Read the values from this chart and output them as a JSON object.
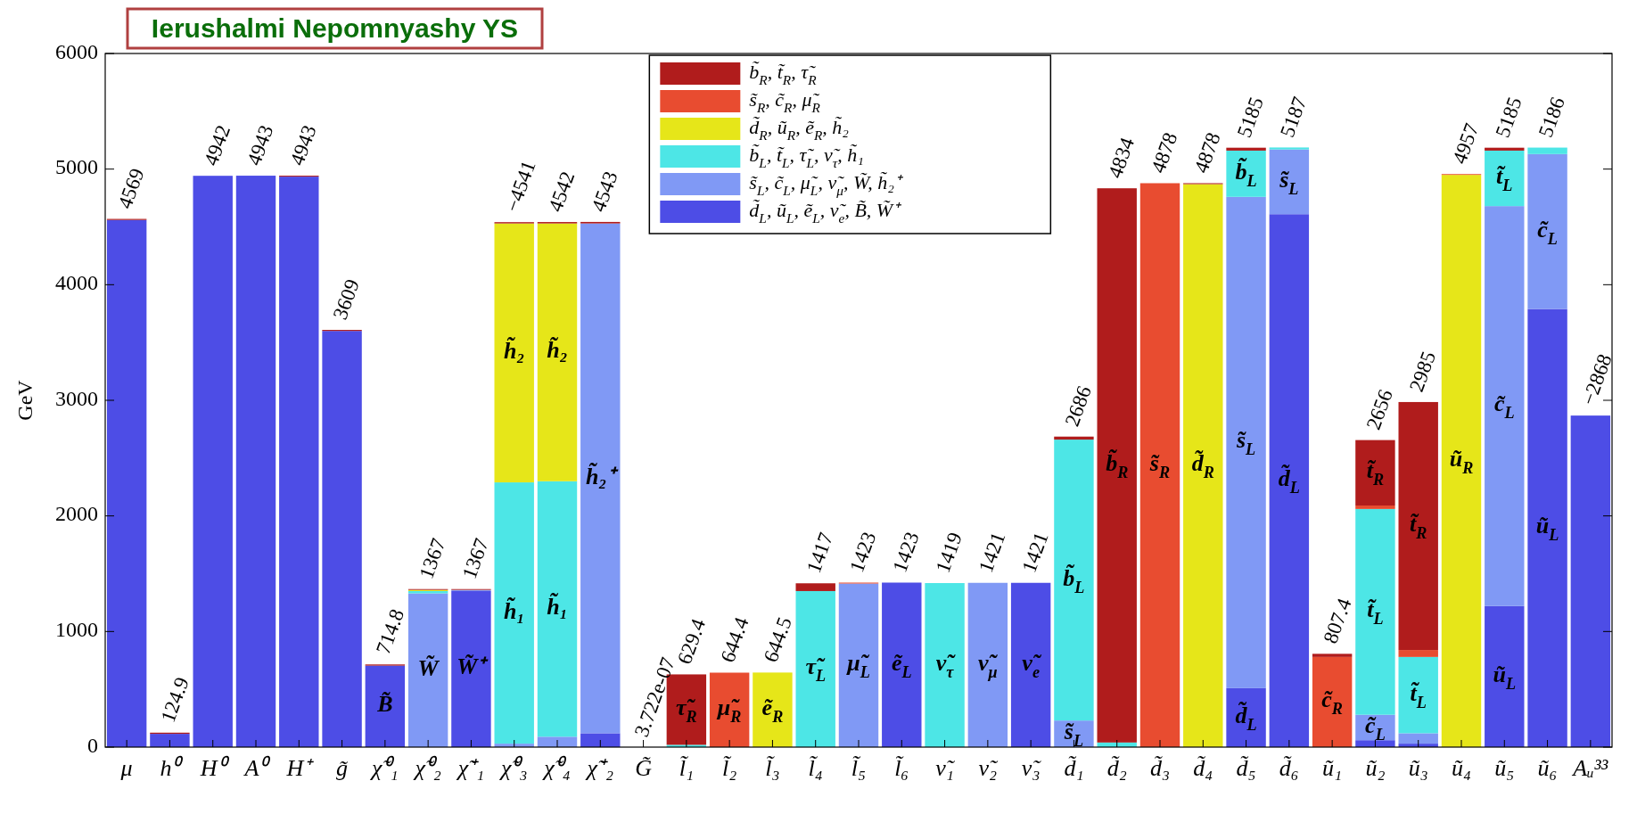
{
  "chart_data": {
    "type": "bar",
    "stacked": true,
    "ylabel": "GeV",
    "ylim": [
      0,
      6000
    ],
    "yticks": [
      0,
      1000,
      2000,
      3000,
      4000,
      5000,
      6000
    ],
    "legend": "top",
    "grid": false,
    "categories": [
      "μ",
      "h⁰",
      "H⁰",
      "A⁰",
      "H⁺",
      "g̃",
      "χ̃⁰₁",
      "χ̃⁰₂",
      "χ̃⁺₁",
      "χ̃⁰₃",
      "χ̃⁰₄",
      "χ̃⁺₂",
      "G̃",
      "l̃₁",
      "l̃₂",
      "l̃₃",
      "l̃₄",
      "l̃₅",
      "l̃₆",
      "ν̃₁",
      "ν̃₂",
      "ν̃₃",
      "d̃₁",
      "d̃₂",
      "d̃₃",
      "d̃₄",
      "d̃₅",
      "d̃₆",
      "ũ₁",
      "ũ₂",
      "ũ₃",
      "ũ₄",
      "ũ₅",
      "ũ₆",
      "Aᵤ³³"
    ],
    "series": [
      {
        "name": "d̃$_{L}$, ũ$_{L}$, ẽ$_{L}$, ν̃$_{e}$, B̃, W̃⁺",
        "color": "#4d4de6",
        "values": [
          4560,
          115,
          4942,
          4943,
          4935,
          3600,
          705,
          0,
          1350,
          0,
          0,
          120,
          0,
          0,
          0,
          0,
          0,
          0,
          1423,
          0,
          0,
          1421,
          0,
          0,
          0,
          0,
          510,
          4610,
          0,
          60,
          30,
          0,
          1220,
          3790,
          2868
        ],
        "value_labels": [
          null,
          null,
          null,
          null,
          null,
          null,
          "B̃",
          null,
          "W̃⁺",
          null,
          null,
          null,
          null,
          null,
          null,
          null,
          null,
          null,
          "ẽ$_{L}$",
          null,
          null,
          "ν̃$_{e}$",
          null,
          null,
          null,
          null,
          "d̃$_{L}$",
          "d̃$_{L}$",
          null,
          null,
          null,
          null,
          "ũ$_{L}$",
          "ũ$_{L}$",
          null
        ]
      },
      {
        "name": "s̃$_{L}$, c̃$_{L}$, μ̃$_{L}$, ν̃$_{μ}$, W̃, h̃₂⁺",
        "color": "#8099f5",
        "values": [
          0,
          0,
          0,
          0,
          0,
          0,
          0,
          1330,
          10,
          30,
          90,
          4410,
          0,
          0,
          0,
          0,
          0,
          1415,
          0,
          0,
          1421,
          0,
          230,
          0,
          0,
          0,
          4250,
          560,
          0,
          220,
          90,
          0,
          3460,
          1340,
          0
        ],
        "value_labels": [
          null,
          null,
          null,
          null,
          null,
          null,
          null,
          "W̃",
          null,
          null,
          null,
          "h̃₂⁺",
          null,
          null,
          null,
          null,
          null,
          "μ̃$_{L}$",
          null,
          null,
          "ν̃$_{μ}$",
          null,
          "s̃$_{L}$",
          null,
          null,
          null,
          "s̃$_{L}$",
          "s̃$_{L}$",
          null,
          "c̃$_{L}$",
          null,
          null,
          "c̃$_{L}$",
          "c̃$_{L}$",
          null
        ]
      },
      {
        "name": "b̃$_{L}$, t̃$_{L}$, τ̃$_{L}$, ν̃$_{τ}$, h̃₁",
        "color": "#4de6e6",
        "values": [
          0,
          0,
          0,
          0,
          0,
          0,
          0,
          20,
          0,
          2260,
          2210,
          0,
          0,
          20,
          0,
          0,
          1350,
          0,
          0,
          1419,
          0,
          0,
          2430,
          40,
          0,
          0,
          400,
          17,
          0,
          1780,
          660,
          0,
          480,
          56,
          0
        ],
        "value_labels": [
          null,
          null,
          null,
          null,
          null,
          null,
          null,
          null,
          null,
          "h̃₁",
          "h̃₁",
          null,
          null,
          null,
          null,
          null,
          "τ̃$_{L}$",
          null,
          null,
          "ν̃$_{τ}$",
          null,
          null,
          "b̃$_{L}$",
          null,
          null,
          null,
          "b̃$_{L}$",
          null,
          null,
          "t̃$_{L}$",
          "t̃$_{L}$",
          null,
          "t̃$_{L}$",
          null,
          null
        ]
      },
      {
        "name": "d̃$_{R}$, ũ$_{R}$, ẽ$_{R}$, h̃₂",
        "color": "#e6e619",
        "values": [
          0,
          0,
          0,
          0,
          0,
          0,
          0,
          10,
          0,
          2240,
          2230,
          0,
          0,
          0,
          0,
          645,
          0,
          0,
          0,
          0,
          0,
          0,
          0,
          0,
          0,
          4870,
          0,
          0,
          0,
          0,
          0,
          4950,
          0,
          0,
          0
        ],
        "value_labels": [
          null,
          null,
          null,
          null,
          null,
          null,
          null,
          null,
          null,
          "h̃₂",
          "h̃₂",
          null,
          null,
          null,
          null,
          "ẽ$_{R}$",
          null,
          null,
          null,
          null,
          null,
          null,
          null,
          null,
          null,
          "d̃$_{R}$",
          null,
          null,
          null,
          null,
          null,
          "ũ$_{R}$",
          null,
          null,
          null
        ]
      },
      {
        "name": "s̃$_{R}$, c̃$_{R}$, μ̃$_{R}$",
        "color": "#e84c30",
        "values": [
          0,
          0,
          0,
          0,
          0,
          0,
          0,
          0,
          0,
          0,
          0,
          0,
          0,
          0,
          644,
          0,
          0,
          8,
          0,
          0,
          0,
          0,
          0,
          0,
          4878,
          0,
          0,
          0,
          780,
          30,
          60,
          7,
          0,
          0,
          0
        ],
        "value_labels": [
          null,
          null,
          null,
          null,
          null,
          null,
          null,
          null,
          null,
          null,
          null,
          null,
          null,
          null,
          "μ̃$_{R}$",
          null,
          null,
          null,
          null,
          null,
          null,
          null,
          null,
          null,
          "s̃$_{R}$",
          null,
          null,
          null,
          "c̃$_{R}$",
          null,
          null,
          null,
          null,
          null,
          null
        ]
      },
      {
        "name": "b̃$_{R}$, t̃$_{R}$, τ̃$_{R}$",
        "color": "#b01c1c",
        "values": [
          9,
          10,
          0,
          0,
          8,
          9,
          10,
          7,
          7,
          11,
          12,
          13,
          0,
          609,
          0,
          0,
          67,
          0,
          0,
          0,
          0,
          0,
          26,
          4794,
          0,
          8,
          25,
          0,
          27,
          566,
          2145,
          0,
          25,
          0,
          0
        ],
        "value_labels": [
          null,
          null,
          null,
          null,
          null,
          null,
          null,
          null,
          null,
          null,
          null,
          null,
          null,
          "τ̃$_{R}$",
          null,
          null,
          null,
          null,
          null,
          null,
          null,
          null,
          null,
          "b̃$_{R}$",
          null,
          null,
          null,
          null,
          null,
          "t̃$_{R}$",
          "t̃$_{R}$",
          null,
          null,
          null,
          null
        ]
      }
    ],
    "annotations": [
      "Ierushalmi Nepomnyashy YS",
      {
        "text": "4569",
        "x": "μ",
        "y": 4569
      },
      {
        "text": "124.9",
        "x": "h⁰",
        "y": 125
      },
      {
        "text": "4942",
        "x": "H⁰",
        "y": 4942
      },
      {
        "text": "4943",
        "x": "A⁰",
        "y": 4943
      },
      {
        "text": "4943",
        "x": "H⁺",
        "y": 4943
      },
      {
        "text": "3609",
        "x": "g̃",
        "y": 3609
      },
      {
        "text": "714.8",
        "x": "χ̃⁰₁",
        "y": 715
      },
      {
        "text": "1367",
        "x": "χ̃⁰₂",
        "y": 1367
      },
      {
        "text": "1367",
        "x": "χ̃⁺₁",
        "y": 1367
      },
      {
        "text": "−4541",
        "x": "χ̃⁰₃",
        "y": 4541
      },
      {
        "text": "4542",
        "x": "χ̃⁰₄",
        "y": 4542
      },
      {
        "text": "4543",
        "x": "χ̃⁺₂",
        "y": 4543
      },
      {
        "text": "3.722e-07",
        "x": "G̃",
        "y": 0
      },
      {
        "text": "629.4",
        "x": "l̃₁",
        "y": 629
      },
      {
        "text": "644.4",
        "x": "l̃₂",
        "y": 644
      },
      {
        "text": "644.5",
        "x": "l̃₃",
        "y": 645
      },
      {
        "text": "1417",
        "x": "l̃₄",
        "y": 1417
      },
      {
        "text": "1423",
        "x": "l̃₅",
        "y": 1423
      },
      {
        "text": "1423",
        "x": "l̃₆",
        "y": 1423
      },
      {
        "text": "1419",
        "x": "ν̃₁",
        "y": 1419
      },
      {
        "text": "1421",
        "x": "ν̃₂",
        "y": 1421
      },
      {
        "text": "1421",
        "x": "ν̃₃",
        "y": 1421
      },
      {
        "text": "2686",
        "x": "d̃₁",
        "y": 2686
      },
      {
        "text": "4834",
        "x": "d̃₂",
        "y": 4834
      },
      {
        "text": "4878",
        "x": "d̃₃",
        "y": 4878
      },
      {
        "text": "4878",
        "x": "d̃₄",
        "y": 4878
      },
      {
        "text": "5185",
        "x": "d̃₅",
        "y": 5185
      },
      {
        "text": "5187",
        "x": "d̃₆",
        "y": 5187
      },
      {
        "text": "807.4",
        "x": "ũ₁",
        "y": 807
      },
      {
        "text": "2656",
        "x": "ũ₂",
        "y": 2656
      },
      {
        "text": "2985",
        "x": "ũ₃",
        "y": 2985
      },
      {
        "text": "4957",
        "x": "ũ₄",
        "y": 4957
      },
      {
        "text": "5185",
        "x": "ũ₅",
        "y": 5185
      },
      {
        "text": "5186",
        "x": "ũ₆",
        "y": 5186
      },
      {
        "text": "−2868",
        "x": "Aᵤ³³",
        "y": 2868
      }
    ]
  }
}
